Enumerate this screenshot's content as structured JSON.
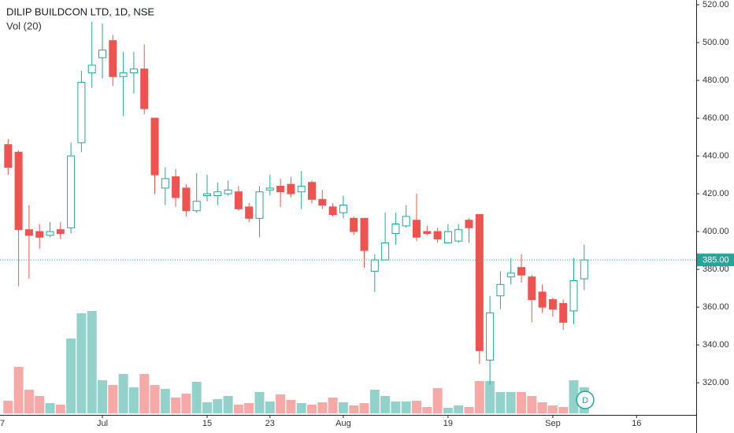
{
  "chart_data": {
    "type": "candlestick",
    "title": "DILIP BUILDCON LTD, 1D, NSE",
    "subtitle": "Vol (20)",
    "badge": "D",
    "categories": [
      "7",
      null,
      null,
      null,
      null,
      null,
      null,
      null,
      null,
      null,
      "Jul",
      null,
      null,
      null,
      null,
      null,
      null,
      null,
      null,
      null,
      "15",
      null,
      null,
      null,
      null,
      null,
      "23",
      null,
      null,
      null,
      null,
      null,
      null,
      "Aug",
      null,
      null,
      null,
      null,
      null,
      null,
      null,
      null,
      null,
      "19",
      null,
      null,
      null,
      null,
      null,
      null,
      null,
      null,
      null,
      "Sep",
      null,
      null,
      null,
      null,
      null,
      null,
      null,
      "16"
    ],
    "open": [
      null,
      446,
      442,
      401,
      400,
      398,
      401,
      402,
      447,
      484,
      492,
      501,
      482,
      484,
      486,
      460,
      423,
      429,
      423,
      411,
      419,
      419,
      420,
      421,
      413,
      407,
      422,
      424,
      425,
      421,
      426,
      417,
      413,
      410,
      407,
      407,
      379,
      385,
      399,
      403,
      406,
      400,
      400,
      394,
      395,
      406,
      409,
      332,
      366,
      376,
      381,
      376,
      368,
      364,
      362,
      358,
      375,
      null,
      null,
      null,
      null,
      null
    ],
    "high": [
      null,
      449,
      443,
      414,
      404,
      405,
      405,
      447,
      485,
      511,
      510,
      504,
      495,
      495,
      499,
      460,
      434,
      433,
      425,
      431,
      430,
      426,
      427,
      424,
      415,
      424,
      430,
      428,
      429,
      432,
      427,
      422,
      415,
      419,
      408,
      407,
      388,
      410,
      410,
      414,
      420,
      403,
      402,
      404,
      404,
      407,
      409,
      366,
      379,
      386,
      388,
      377,
      372,
      365,
      364,
      386,
      393,
      null,
      null,
      null,
      null,
      null
    ],
    "low": [
      null,
      430,
      371,
      375,
      391,
      397,
      396,
      399,
      442,
      476,
      481,
      477,
      461,
      473,
      462,
      420,
      414,
      413,
      408,
      410,
      416,
      414,
      419,
      411,
      405,
      397,
      419,
      413,
      418,
      412,
      415,
      412,
      408,
      407,
      398,
      381,
      368,
      385,
      393,
      402,
      395,
      398,
      394,
      394,
      394,
      394,
      330,
      319,
      359,
      372,
      373,
      352,
      357,
      355,
      348,
      351,
      369,
      null,
      null,
      null,
      null,
      null
    ],
    "close": [
      null,
      434,
      401,
      398,
      397,
      400,
      399,
      440,
      479,
      488,
      496,
      482,
      484,
      486,
      465,
      430,
      428,
      418,
      411,
      416,
      420,
      421,
      422,
      412,
      407,
      421,
      423,
      421,
      420,
      424,
      417,
      414,
      409,
      414,
      400,
      390,
      385,
      394,
      404,
      408,
      397,
      399,
      396,
      400,
      401,
      402,
      337,
      357,
      372,
      378,
      377,
      364,
      360,
      359,
      352,
      374,
      385,
      null,
      null,
      null,
      null,
      null
    ],
    "volume": [
      null,
      16,
      59,
      30,
      22,
      13,
      11,
      95,
      127,
      130,
      42,
      36,
      50,
      33,
      50,
      36,
      31,
      20,
      25,
      40,
      14,
      18,
      22,
      11,
      13,
      27,
      15,
      24,
      17,
      13,
      11,
      14,
      20,
      14,
      10,
      13,
      30,
      22,
      15,
      15,
      16,
      8,
      32,
      7,
      10,
      8,
      41,
      41,
      27,
      27,
      27,
      22,
      14,
      10,
      8,
      42,
      33,
      null,
      null,
      null,
      null,
      null
    ],
    "ylim": [
      303,
      522.5
    ],
    "yticks": [
      {
        "value": 320,
        "label": "320.00"
      },
      {
        "value": 340,
        "label": "340.00"
      },
      {
        "value": 360,
        "label": "360.00"
      },
      {
        "value": 380,
        "label": "380.00"
      },
      {
        "value": 400,
        "label": "400.00"
      },
      {
        "value": 420,
        "label": "420.00"
      },
      {
        "value": 440,
        "label": "440.00"
      },
      {
        "value": 460,
        "label": "460.00"
      },
      {
        "value": 480,
        "label": "480.00"
      },
      {
        "value": 500,
        "label": "500.00"
      },
      {
        "value": 520,
        "label": "520.00"
      }
    ],
    "last_price": {
      "value": 385,
      "label": "385.00"
    },
    "up_color": "#26a69a",
    "down_color": "#ef5350",
    "up_volume_color": "#93d2cb",
    "down_volume_color": "#f7a9a7"
  }
}
